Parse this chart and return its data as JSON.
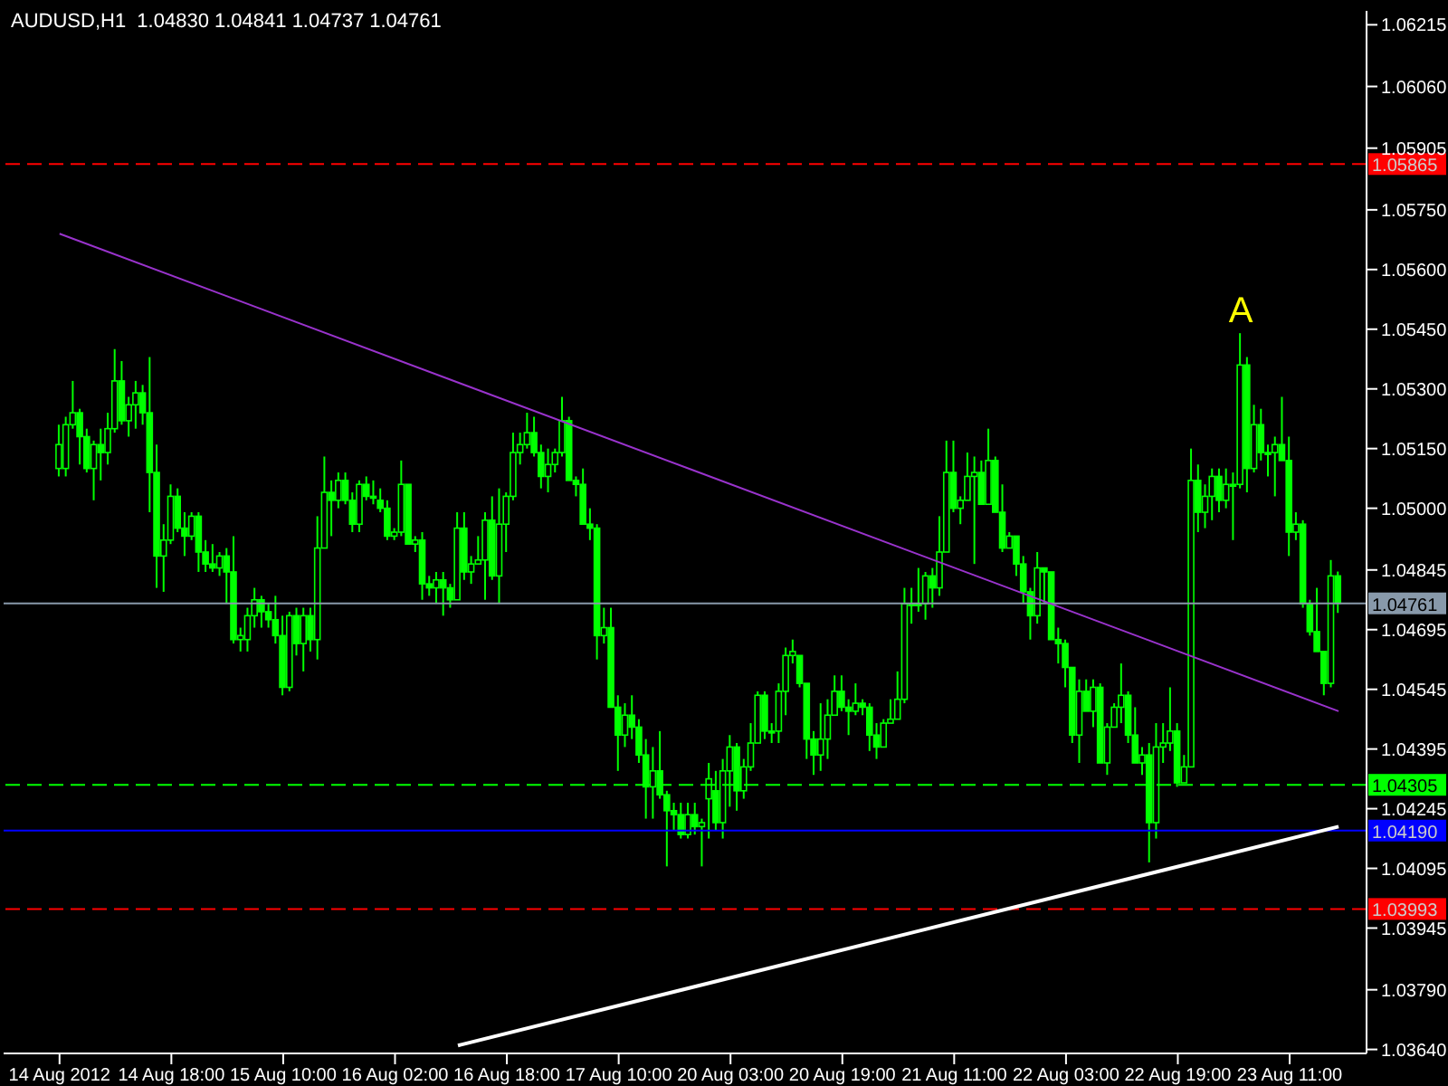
{
  "chart_data": {
    "type": "candlestick",
    "title": "AUDUSD,H1  1.04830 1.04841 1.04737 1.04761",
    "color": "#00ff00",
    "categories": [
      "14 Aug 2012",
      null,
      null,
      null,
      null,
      null,
      null,
      null,
      null,
      null,
      null,
      null,
      null,
      null,
      null,
      null,
      "14 Aug 18:00",
      null,
      null,
      null,
      null,
      null,
      null,
      null,
      null,
      null,
      null,
      null,
      null,
      null,
      null,
      null,
      "15 Aug 10:00",
      null,
      null,
      null,
      null,
      null,
      null,
      null,
      null,
      null,
      null,
      null,
      null,
      null,
      null,
      null,
      "16 Aug 02:00",
      null,
      null,
      null,
      null,
      null,
      null,
      null,
      null,
      null,
      null,
      null,
      null,
      null,
      null,
      null,
      "16 Aug 18:00",
      null,
      null,
      null,
      null,
      null,
      null,
      null,
      null,
      null,
      null,
      null,
      null,
      null,
      null,
      null,
      "17 Aug 10:00",
      null,
      null,
      null,
      null,
      null,
      null,
      null,
      null,
      null,
      null,
      null,
      null,
      null,
      null,
      null,
      "20 Aug 03:00",
      null,
      null,
      null,
      null,
      null,
      null,
      null,
      null,
      null,
      null,
      null,
      null,
      null,
      null,
      null,
      "20 Aug 19:00",
      null,
      null,
      null,
      null,
      null,
      null,
      null,
      null,
      null,
      null,
      null,
      null,
      null,
      null,
      null,
      "21 Aug 11:00",
      null,
      null,
      null,
      null,
      null,
      null,
      null,
      null,
      null,
      null,
      null,
      null,
      null,
      null,
      null,
      "22 Aug 03:00",
      null,
      null,
      null,
      null,
      null,
      null,
      null,
      null,
      null,
      null,
      null,
      null,
      null,
      null,
      null,
      "22 Aug 19:00",
      null,
      null,
      null,
      null,
      null,
      null,
      null,
      null,
      null,
      null,
      null,
      null,
      null,
      null,
      null,
      "23 Aug 11:00",
      null,
      null,
      null,
      null,
      null,
      null,
      null
    ],
    "ohlc": [
      [
        1.051,
        1.0521,
        1.0508,
        1.0516
      ],
      [
        1.051,
        1.0523,
        1.0508,
        1.0521
      ],
      [
        1.0521,
        1.0532,
        1.052,
        1.0524
      ],
      [
        1.0524,
        1.0525,
        1.0511,
        1.0518
      ],
      [
        1.0518,
        1.052,
        1.0509,
        1.051
      ],
      [
        1.051,
        1.0517,
        1.0502,
        1.0516
      ],
      [
        1.0516,
        1.052,
        1.0507,
        1.0514
      ],
      [
        1.0514,
        1.0524,
        1.0511,
        1.052
      ],
      [
        1.052,
        1.054,
        1.0519,
        1.0532
      ],
      [
        1.0532,
        1.0537,
        1.0521,
        1.0522
      ],
      [
        1.0522,
        1.0528,
        1.0518,
        1.0526
      ],
      [
        1.0526,
        1.0532,
        1.052,
        1.0529
      ],
      [
        1.0529,
        1.0531,
        1.0521,
        1.0524
      ],
      [
        1.0524,
        1.0538,
        1.0499,
        1.0509
      ],
      [
        1.0509,
        1.0516,
        1.048,
        1.0488
      ],
      [
        1.0488,
        1.0496,
        1.0479,
        1.0492
      ],
      [
        1.0492,
        1.0506,
        1.0491,
        1.0503
      ],
      [
        1.0503,
        1.0505,
        1.0494,
        1.0495
      ],
      [
        1.0495,
        1.0499,
        1.0488,
        1.0493
      ],
      [
        1.0493,
        1.0499,
        1.0492,
        1.0498
      ],
      [
        1.0498,
        1.0499,
        1.0484,
        1.0489
      ],
      [
        1.0489,
        1.0492,
        1.0484,
        1.0486
      ],
      [
        1.0486,
        1.0491,
        1.0484,
        1.0485
      ],
      [
        1.0485,
        1.0489,
        1.0483,
        1.0488
      ],
      [
        1.0488,
        1.049,
        1.0476,
        1.0484
      ],
      [
        1.0484,
        1.0493,
        1.0466,
        1.0467
      ],
      [
        1.0467,
        1.047,
        1.0464,
        1.0468
      ],
      [
        1.0467,
        1.0475,
        1.0464,
        1.0473
      ],
      [
        1.0473,
        1.048,
        1.047,
        1.0477
      ],
      [
        1.0477,
        1.0478,
        1.047,
        1.0474
      ],
      [
        1.0474,
        1.0476,
        1.047,
        1.0472
      ],
      [
        1.0472,
        1.0478,
        1.0466,
        1.0468
      ],
      [
        1.0468,
        1.0473,
        1.0453,
        1.0455
      ],
      [
        1.0455,
        1.0474,
        1.0454,
        1.0473
      ],
      [
        1.0473,
        1.0475,
        1.0463,
        1.0466
      ],
      [
        1.0466,
        1.0475,
        1.0459,
        1.0473
      ],
      [
        1.0473,
        1.0475,
        1.0464,
        1.0467
      ],
      [
        1.0467,
        1.0498,
        1.0462,
        1.049
      ],
      [
        1.049,
        1.0513,
        1.049,
        1.0504
      ],
      [
        1.0504,
        1.0507,
        1.0493,
        1.0502
      ],
      [
        1.0502,
        1.0509,
        1.05,
        1.0507
      ],
      [
        1.0507,
        1.0509,
        1.0501,
        1.0502
      ],
      [
        1.0502,
        1.0504,
        1.0494,
        1.0496
      ],
      [
        1.0496,
        1.0507,
        1.0494,
        1.0506
      ],
      [
        1.0506,
        1.0508,
        1.0502,
        1.0503
      ],
      [
        1.0503,
        1.0507,
        1.0501,
        1.0503
      ],
      [
        1.0502,
        1.0505,
        1.0499,
        1.05
      ],
      [
        1.05,
        1.0502,
        1.0492,
        1.0493
      ],
      [
        1.0493,
        1.0495,
        1.0492,
        1.0494
      ],
      [
        1.0494,
        1.0512,
        1.0493,
        1.0506
      ],
      [
        1.0506,
        1.0506,
        1.0491,
        1.0491
      ],
      [
        1.0491,
        1.0493,
        1.0489,
        1.0492
      ],
      [
        1.0492,
        1.0494,
        1.0477,
        1.0481
      ],
      [
        1.0481,
        1.0483,
        1.0478,
        1.048
      ],
      [
        1.048,
        1.0484,
        1.0476,
        1.0482
      ],
      [
        1.0482,
        1.0484,
        1.0473,
        1.048
      ],
      [
        1.048,
        1.0481,
        1.0475,
        1.0477
      ],
      [
        1.0477,
        1.0499,
        1.0477,
        1.0495
      ],
      [
        1.0495,
        1.0499,
        1.0482,
        1.0484
      ],
      [
        1.0484,
        1.0488,
        1.0481,
        1.0486
      ],
      [
        1.0486,
        1.0493,
        1.0486,
        1.0487
      ],
      [
        1.0487,
        1.0499,
        1.0477,
        1.0497
      ],
      [
        1.0497,
        1.0503,
        1.0482,
        1.0483
      ],
      [
        1.0483,
        1.0505,
        1.0476,
        1.0496
      ],
      [
        1.0496,
        1.0504,
        1.0489,
        1.0503
      ],
      [
        1.0503,
        1.0519,
        1.0502,
        1.0514
      ],
      [
        1.0514,
        1.0519,
        1.0511,
        1.0516
      ],
      [
        1.0516,
        1.0524,
        1.0515,
        1.0519
      ],
      [
        1.0519,
        1.0523,
        1.0513,
        1.0514
      ],
      [
        1.0514,
        1.0516,
        1.0505,
        1.0508
      ],
      [
        1.0508,
        1.0515,
        1.0504,
        1.0511
      ],
      [
        1.0511,
        1.0515,
        1.0509,
        1.0514
      ],
      [
        1.0514,
        1.0528,
        1.0513,
        1.0522
      ],
      [
        1.0522,
        1.0523,
        1.0507,
        1.0507
      ],
      [
        1.0507,
        1.0508,
        1.0503,
        1.0506
      ],
      [
        1.0506,
        1.051,
        1.0496,
        1.0496
      ],
      [
        1.0496,
        1.05,
        1.0492,
        1.0495
      ],
      [
        1.0495,
        1.0496,
        1.0462,
        1.0468
      ],
      [
        1.0468,
        1.0475,
        1.0466,
        1.047
      ],
      [
        1.047,
        1.0475,
        1.045,
        1.045
      ],
      [
        1.045,
        1.0453,
        1.0434,
        1.0443
      ],
      [
        1.0443,
        1.0451,
        1.044,
        1.0448
      ],
      [
        1.0448,
        1.0453,
        1.0442,
        1.0445
      ],
      [
        1.0445,
        1.0447,
        1.0436,
        1.0438
      ],
      [
        1.0438,
        1.0442,
        1.0422,
        1.043
      ],
      [
        1.043,
        1.044,
        1.0422,
        1.0434
      ],
      [
        1.0434,
        1.0444,
        1.0427,
        1.0428
      ],
      [
        1.0428,
        1.0429,
        1.041,
        1.0424
      ],
      [
        1.0424,
        1.0426,
        1.0419,
        1.0423
      ],
      [
        1.0423,
        1.0426,
        1.0417,
        1.0418
      ],
      [
        1.0418,
        1.0426,
        1.0417,
        1.0423
      ],
      [
        1.0423,
        1.0426,
        1.0418,
        1.042
      ],
      [
        1.042,
        1.0422,
        1.041,
        1.0421
      ],
      [
        1.0427,
        1.0436,
        1.0417,
        1.0432
      ],
      [
        1.0429,
        1.0434,
        1.0419,
        1.0421
      ],
      [
        1.0421,
        1.0437,
        1.0417,
        1.0434
      ],
      [
        1.0434,
        1.0443,
        1.0425,
        1.044
      ],
      [
        1.044,
        1.0441,
        1.0424,
        1.0429
      ],
      [
        1.0429,
        1.0437,
        1.0427,
        1.0435
      ],
      [
        1.0435,
        1.0446,
        1.0434,
        1.0441
      ],
      [
        1.0441,
        1.0454,
        1.0441,
        1.0453
      ],
      [
        1.0453,
        1.0454,
        1.0442,
        1.0444
      ],
      [
        1.0444,
        1.0446,
        1.0441,
        1.0444
      ],
      [
        1.0444,
        1.0456,
        1.0441,
        1.0454
      ],
      [
        1.0454,
        1.0465,
        1.0448,
        1.0463
      ],
      [
        1.0463,
        1.0467,
        1.0461,
        1.0464
      ],
      [
        1.0463,
        1.0463,
        1.0455,
        1.0456
      ],
      [
        1.0456,
        1.0456,
        1.0437,
        1.0442
      ],
      [
        1.0442,
        1.0444,
        1.0433,
        1.0438
      ],
      [
        1.0438,
        1.0451,
        1.0434,
        1.0442
      ],
      [
        1.0442,
        1.0452,
        1.0437,
        1.0448
      ],
      [
        1.0448,
        1.0458,
        1.0448,
        1.0454
      ],
      [
        1.0454,
        1.0458,
        1.0449,
        1.045
      ],
      [
        1.045,
        1.0452,
        1.0443,
        1.0449
      ],
      [
        1.0449,
        1.0456,
        1.0448,
        1.0451
      ],
      [
        1.0451,
        1.0452,
        1.0448,
        1.045
      ],
      [
        1.045,
        1.0451,
        1.0439,
        1.0443
      ],
      [
        1.0443,
        1.0446,
        1.0437,
        1.044
      ],
      [
        1.044,
        1.0447,
        1.044,
        1.0446
      ],
      [
        1.0446,
        1.0452,
        1.0446,
        1.0447
      ],
      [
        1.0447,
        1.0459,
        1.0447,
        1.0452
      ],
      [
        1.0452,
        1.048,
        1.0451,
        1.0476
      ],
      [
        1.0476,
        1.048,
        1.0471,
        1.0476
      ],
      [
        1.0476,
        1.0485,
        1.0474,
        1.0476
      ],
      [
        1.0476,
        1.0484,
        1.0472,
        1.0483
      ],
      [
        1.0483,
        1.0485,
        1.0475,
        1.048
      ],
      [
        1.048,
        1.0498,
        1.0478,
        1.0489
      ],
      [
        1.0489,
        1.0517,
        1.0489,
        1.0509
      ],
      [
        1.0509,
        1.0517,
        1.0499,
        1.05
      ],
      [
        1.05,
        1.0503,
        1.0496,
        1.0502
      ],
      [
        1.0502,
        1.0514,
        1.0502,
        1.0508
      ],
      [
        1.0508,
        1.0513,
        1.0486,
        1.0509
      ],
      [
        1.0509,
        1.0512,
        1.0501,
        1.0501
      ],
      [
        1.0501,
        1.052,
        1.0501,
        1.0512
      ],
      [
        1.0512,
        1.0513,
        1.0499,
        1.0499
      ],
      [
        1.0499,
        1.0506,
        1.0489,
        1.049
      ],
      [
        1.049,
        1.0494,
        1.049,
        1.0493
      ],
      [
        1.0493,
        1.0493,
        1.0483,
        1.0486
      ],
      [
        1.0486,
        1.0488,
        1.0476,
        1.0479
      ],
      [
        1.0479,
        1.048,
        1.0467,
        1.0473
      ],
      [
        1.0473,
        1.0489,
        1.0471,
        1.0485
      ],
      [
        1.0485,
        1.0485,
        1.0476,
        1.0484
      ],
      [
        1.0484,
        1.0484,
        1.0467,
        1.0467
      ],
      [
        1.0467,
        1.047,
        1.0461,
        1.0466
      ],
      [
        1.0466,
        1.0467,
        1.0455,
        1.046
      ],
      [
        1.046,
        1.046,
        1.0441,
        1.0443
      ],
      [
        1.0443,
        1.0457,
        1.0436,
        1.0454
      ],
      [
        1.0454,
        1.0457,
        1.0449,
        1.0449
      ],
      [
        1.0449,
        1.0457,
        1.0445,
        1.0455
      ],
      [
        1.0455,
        1.0456,
        1.0436,
        1.0436
      ],
      [
        1.0436,
        1.0446,
        1.0433,
        1.0445
      ],
      [
        1.0445,
        1.0451,
        1.0445,
        1.045
      ],
      [
        1.045,
        1.0461,
        1.0446,
        1.0453
      ],
      [
        1.0453,
        1.0454,
        1.0441,
        1.0443
      ],
      [
        1.0443,
        1.045,
        1.0436,
        1.0436
      ],
      [
        1.0436,
        1.044,
        1.0433,
        1.0438
      ],
      [
        1.0438,
        1.0441,
        1.0411,
        1.0421
      ],
      [
        1.0421,
        1.0446,
        1.0417,
        1.044
      ],
      [
        1.044,
        1.0446,
        1.0436,
        1.0441
      ],
      [
        1.0441,
        1.0455,
        1.0439,
        1.0444
      ],
      [
        1.0444,
        1.0446,
        1.043,
        1.0431
      ],
      [
        1.0431,
        1.0438,
        1.0431,
        1.0435
      ],
      [
        1.0435,
        1.0515,
        1.0435,
        1.0507
      ],
      [
        1.0507,
        1.0511,
        1.0494,
        1.0499
      ],
      [
        1.0499,
        1.0506,
        1.0495,
        1.0503
      ],
      [
        1.0503,
        1.051,
        1.0497,
        1.0508
      ],
      [
        1.0508,
        1.051,
        1.0499,
        1.0502
      ],
      [
        1.0502,
        1.051,
        1.05,
        1.0506
      ],
      [
        1.0506,
        1.0509,
        1.0492,
        1.0506
      ],
      [
        1.0506,
        1.0544,
        1.0505,
        1.0536
      ],
      [
        1.0536,
        1.0538,
        1.0504,
        1.051
      ],
      [
        1.051,
        1.0526,
        1.0509,
        1.0521
      ],
      [
        1.0521,
        1.0525,
        1.0512,
        1.0514
      ],
      [
        1.0514,
        1.0516,
        1.0508,
        1.0514
      ],
      [
        1.0514,
        1.0518,
        1.0503,
        1.0516
      ],
      [
        1.0516,
        1.0528,
        1.0512,
        1.0512
      ],
      [
        1.0512,
        1.0518,
        1.0488,
        1.0494
      ],
      [
        1.0494,
        1.0499,
        1.0492,
        1.0496
      ],
      [
        1.0496,
        1.0497,
        1.0475,
        1.0476
      ],
      [
        1.0476,
        1.0477,
        1.0468,
        1.0469
      ],
      [
        1.0469,
        1.048,
        1.0464,
        1.0464
      ],
      [
        1.0464,
        1.0464,
        1.0453,
        1.0456
      ],
      [
        1.0456,
        1.0487,
        1.0455,
        1.0483
      ],
      [
        1.0483,
        1.04841,
        1.04737,
        1.04761
      ]
    ],
    "series": [
      {
        "type": "line",
        "color": "#9933cc",
        "values": [
          1.0569,
          null,
          null,
          null,
          null,
          null,
          null,
          null,
          null,
          null,
          null,
          null,
          null,
          null,
          null,
          null,
          null,
          null,
          null,
          null,
          null,
          null,
          null,
          null,
          null,
          null,
          null,
          null,
          null,
          null,
          null,
          null,
          null,
          null,
          null,
          null,
          null,
          null,
          null,
          null,
          null,
          null,
          null,
          null,
          null,
          null,
          null,
          null,
          null,
          null,
          null,
          null,
          null,
          null,
          null,
          null,
          null,
          null,
          null,
          null,
          null,
          null,
          null,
          null,
          null,
          null,
          null,
          null,
          null,
          null,
          null,
          null,
          null,
          null,
          null,
          null,
          null,
          null,
          null,
          null,
          null,
          null,
          null,
          null,
          null,
          null,
          null,
          null,
          null,
          null,
          null,
          null,
          null,
          null,
          null,
          null,
          null,
          null,
          null,
          null,
          null,
          null,
          null,
          null,
          null,
          null,
          null,
          null,
          null,
          null,
          null,
          null,
          null,
          null,
          null,
          null,
          null,
          null,
          null,
          null,
          null,
          null,
          null,
          null,
          null,
          null,
          null,
          null,
          null,
          null,
          null,
          null,
          null,
          null,
          null,
          null,
          null,
          null,
          null,
          null,
          null,
          null,
          null,
          null,
          null,
          null,
          null,
          null,
          null,
          null,
          null,
          null,
          null,
          null,
          null,
          null,
          null,
          null,
          null,
          null,
          null,
          null,
          null,
          null,
          null,
          null,
          null,
          null,
          null,
          null,
          null,
          null,
          null,
          null,
          null,
          null,
          null,
          null,
          null,
          null,
          null,
          null,
          null,
          1.0449
        ]
      },
      {
        "type": "line",
        "color": "#ffffff",
        "values": [
          null,
          null,
          null,
          null,
          null,
          null,
          null,
          null,
          null,
          null,
          null,
          null,
          null,
          null,
          null,
          null,
          null,
          null,
          null,
          null,
          null,
          null,
          null,
          null,
          null,
          null,
          null,
          null,
          null,
          null,
          null,
          null,
          null,
          null,
          null,
          null,
          null,
          null,
          null,
          null,
          null,
          null,
          null,
          null,
          null,
          null,
          null,
          null,
          null,
          null,
          null,
          null,
          null,
          null,
          null,
          null,
          null,
          1.0365,
          null,
          null,
          null,
          null,
          null,
          null,
          null,
          null,
          null,
          null,
          null,
          null,
          null,
          null,
          null,
          null,
          null,
          null,
          null,
          null,
          null,
          null,
          null,
          null,
          null,
          null,
          null,
          null,
          null,
          null,
          null,
          null,
          null,
          null,
          null,
          null,
          null,
          null,
          null,
          null,
          null,
          null,
          null,
          null,
          null,
          null,
          null,
          null,
          null,
          null,
          null,
          null,
          null,
          null,
          null,
          null,
          null,
          null,
          null,
          null,
          null,
          null,
          null,
          null,
          null,
          null,
          null,
          null,
          null,
          null,
          null,
          null,
          null,
          null,
          null,
          null,
          null,
          null,
          null,
          null,
          null,
          null,
          null,
          null,
          null,
          null,
          null,
          null,
          null,
          null,
          null,
          null,
          null,
          null,
          null,
          null,
          null,
          null,
          null,
          null,
          null,
          null,
          null,
          null,
          null,
          null,
          null,
          null,
          null,
          null,
          null,
          null,
          null,
          null,
          null,
          null,
          null,
          null,
          null,
          null,
          null,
          null,
          null,
          null,
          null,
          1.042
        ]
      }
    ],
    "ylim": [
      1.0363,
      1.0625
    ],
    "yticks": [
      {
        "value": 1.06215,
        "label": "1.06215"
      },
      {
        "value": 1.0606,
        "label": "1.06060"
      },
      {
        "value": 1.05905,
        "label": "1.05905"
      },
      {
        "value": 1.0575,
        "label": "1.05750"
      },
      {
        "value": 1.056,
        "label": "1.05600"
      },
      {
        "value": 1.0545,
        "label": "1.05450"
      },
      {
        "value": 1.053,
        "label": "1.05300"
      },
      {
        "value": 1.0515,
        "label": "1.05150"
      },
      {
        "value": 1.05,
        "label": "1.05000"
      },
      {
        "value": 1.04845,
        "label": "1.04845"
      },
      {
        "value": 1.04695,
        "label": "1.04695"
      },
      {
        "value": 1.04545,
        "label": "1.04545"
      },
      {
        "value": 1.04395,
        "label": "1.04395"
      },
      {
        "value": 1.04245,
        "label": "1.04245"
      },
      {
        "value": 1.04095,
        "label": "1.04095"
      },
      {
        "value": 1.03945,
        "label": "1.03945"
      },
      {
        "value": 1.0379,
        "label": "1.03790"
      },
      {
        "value": 1.0364,
        "label": "1.03640"
      }
    ],
    "ref_lines": [
      {
        "axis": "y",
        "value": 1.05865,
        "label": "1.05865",
        "color": "#ff0000",
        "line_style": "dashed"
      },
      {
        "axis": "y",
        "value": 1.04761,
        "label": "1.04761",
        "color": "#8899aa",
        "line_style": "solid"
      },
      {
        "axis": "y",
        "value": 1.04305,
        "label": "1.04305",
        "color": "#00ff00",
        "line_style": "dashed"
      },
      {
        "axis": "y",
        "value": 1.0419,
        "label": "1.04190",
        "color": "#0000ff",
        "line_style": "solid"
      },
      {
        "axis": "y",
        "value": 1.03993,
        "label": "1.03993",
        "color": "#ff0000",
        "line_style": "dashed"
      }
    ],
    "annotations": [
      "A"
    ]
  }
}
